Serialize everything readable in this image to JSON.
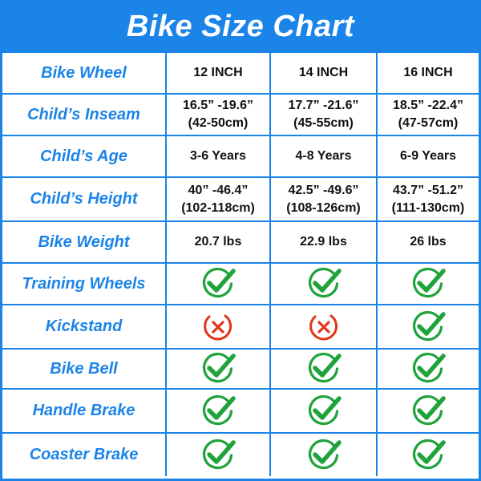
{
  "title": "Bike Size Chart",
  "colors": {
    "accent": "#1b84e8",
    "check": "#1fa33a",
    "cross": "#e2341c"
  },
  "rows": [
    {
      "label": "Bike Wheel",
      "cells": [
        {
          "lines": [
            "12 INCH"
          ]
        },
        {
          "lines": [
            "14 INCH"
          ]
        },
        {
          "lines": [
            "16 INCH"
          ]
        }
      ]
    },
    {
      "label": "Child’s Inseam",
      "cells": [
        {
          "lines": [
            "16.5” -19.6”",
            "(42-50cm)"
          ]
        },
        {
          "lines": [
            "17.7” -21.6”",
            "(45-55cm)"
          ]
        },
        {
          "lines": [
            "18.5” -22.4”",
            "(47-57cm)"
          ]
        }
      ]
    },
    {
      "label": "Child’s Age",
      "cells": [
        {
          "lines": [
            "3-6 Years"
          ]
        },
        {
          "lines": [
            "4-8 Years"
          ]
        },
        {
          "lines": [
            "6-9 Years"
          ]
        }
      ]
    },
    {
      "label": "Child’s Height",
      "cells": [
        {
          "lines": [
            "40” -46.4”",
            "(102-118cm)"
          ]
        },
        {
          "lines": [
            "42.5” -49.6”",
            "(108-126cm)"
          ]
        },
        {
          "lines": [
            "43.7” -51.2”",
            "(111-130cm)"
          ]
        }
      ]
    },
    {
      "label": "Bike Weight",
      "cells": [
        {
          "lines": [
            "20.7 lbs"
          ]
        },
        {
          "lines": [
            "22.9 lbs"
          ]
        },
        {
          "lines": [
            "26 lbs"
          ]
        }
      ]
    },
    {
      "label": "Training Wheels",
      "cells": [
        {
          "icon": "check-icon"
        },
        {
          "icon": "check-icon"
        },
        {
          "icon": "check-icon"
        }
      ]
    },
    {
      "label": "Kickstand",
      "cells": [
        {
          "icon": "cross-icon"
        },
        {
          "icon": "cross-icon"
        },
        {
          "icon": "check-icon"
        }
      ]
    },
    {
      "label": "Bike Bell",
      "cells": [
        {
          "icon": "check-icon"
        },
        {
          "icon": "check-icon"
        },
        {
          "icon": "check-icon"
        }
      ]
    },
    {
      "label": "Handle Brake",
      "cells": [
        {
          "icon": "check-icon"
        },
        {
          "icon": "check-icon"
        },
        {
          "icon": "check-icon"
        }
      ]
    },
    {
      "label": "Coaster Brake",
      "cells": [
        {
          "icon": "check-icon"
        },
        {
          "icon": "check-icon"
        },
        {
          "icon": "check-icon"
        }
      ]
    }
  ]
}
